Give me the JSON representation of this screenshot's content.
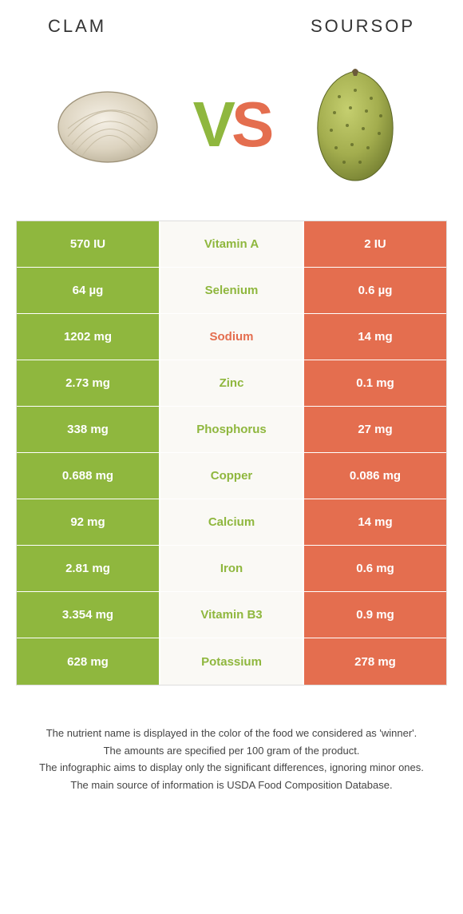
{
  "titles": {
    "left": "CLAM",
    "right": "SOURSOP"
  },
  "vs": {
    "v": "V",
    "s": "S"
  },
  "colors": {
    "green": "#8fb73e",
    "orange": "#e46e4f",
    "mid_bg": "#faf9f5",
    "border": "#dddddd"
  },
  "rows": [
    {
      "left": "570 IU",
      "label": "Vitamin A",
      "right": "2 IU",
      "winner": "green"
    },
    {
      "left": "64 µg",
      "label": "Selenium",
      "right": "0.6 µg",
      "winner": "green"
    },
    {
      "left": "1202 mg",
      "label": "Sodium",
      "right": "14 mg",
      "winner": "orange"
    },
    {
      "left": "2.73 mg",
      "label": "Zinc",
      "right": "0.1 mg",
      "winner": "green"
    },
    {
      "left": "338 mg",
      "label": "Phosphorus",
      "right": "27 mg",
      "winner": "green"
    },
    {
      "left": "0.688 mg",
      "label": "Copper",
      "right": "0.086 mg",
      "winner": "green"
    },
    {
      "left": "92 mg",
      "label": "Calcium",
      "right": "14 mg",
      "winner": "green"
    },
    {
      "left": "2.81 mg",
      "label": "Iron",
      "right": "0.6 mg",
      "winner": "green"
    },
    {
      "left": "3.354 mg",
      "label": "Vitamin B3",
      "right": "0.9 mg",
      "winner": "green"
    },
    {
      "left": "628 mg",
      "label": "Potassium",
      "right": "278 mg",
      "winner": "green"
    }
  ],
  "footer": [
    "The nutrient name is displayed in the color of the food we considered as 'winner'.",
    "The amounts are specified per 100 gram of the product.",
    "The infographic aims to display only the significant differences, ignoring minor ones.",
    "The main source of information is USDA Food Composition Database."
  ]
}
